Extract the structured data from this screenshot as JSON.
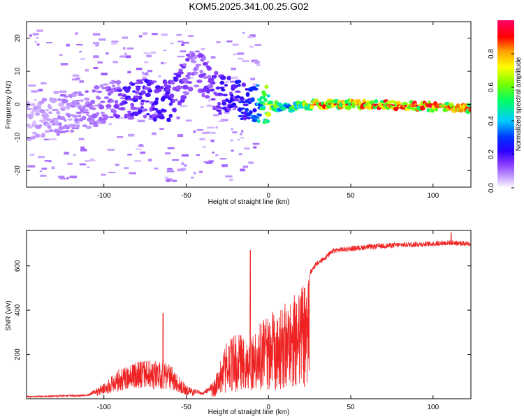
{
  "title": "KOM5.2025.341.00.25.G02",
  "chart_data": [
    {
      "type": "heatmap",
      "xlabel": "Height of straight line (km)",
      "ylabel": "Frequency (Hz)",
      "xlim": [
        -147,
        123
      ],
      "ylim": [
        -25,
        25
      ],
      "xticks": [
        -100,
        -50,
        0,
        50,
        100
      ],
      "yticks": [
        -20,
        -10,
        0,
        10,
        20
      ],
      "colorbar": {
        "label": "Normalized spectral amplitude",
        "range": [
          0,
          1
        ],
        "ticks": [
          "0.0",
          "0.2",
          "0.4",
          "0.6",
          "0.8"
        ],
        "colors": [
          "#ffffff",
          "#9a5cff",
          "#3300ff",
          "#0000ff",
          "#00ccff",
          "#00ff66",
          "#aaff00",
          "#ffff00",
          "#ff9900",
          "#ff0000",
          "#ff0055"
        ]
      },
      "ridge": {
        "description_points": [
          {
            "x": -140,
            "y": -5,
            "amp": 0.08
          },
          {
            "x": -100,
            "y": 0,
            "amp": 0.12
          },
          {
            "x": -85,
            "y": 2,
            "amp": 0.2
          },
          {
            "x": -60,
            "y": 1,
            "amp": 0.22
          },
          {
            "x": -45,
            "y": 12,
            "amp": 0.12
          },
          {
            "x": -30,
            "y": 3,
            "amp": 0.2
          },
          {
            "x": -10,
            "y": 0.5,
            "amp": 0.3
          },
          {
            "x": 0,
            "y": 0,
            "amp": 0.7
          },
          {
            "x": 10,
            "y": -1,
            "amp": 0.5
          },
          {
            "x": 30,
            "y": 0,
            "amp": 0.85
          },
          {
            "x": 60,
            "y": 0,
            "amp": 0.9
          },
          {
            "x": 90,
            "y": -0.5,
            "amp": 0.95
          },
          {
            "x": 120,
            "y": -1,
            "amp": 0.85
          }
        ]
      }
    },
    {
      "type": "line",
      "xlabel": "Height of straight line (km)",
      "ylabel": "SNR (v/v)",
      "xlim": [
        -147,
        123
      ],
      "ylim": [
        0,
        760
      ],
      "xticks": [
        -100,
        -50,
        0,
        50,
        100
      ],
      "yticks": [
        200,
        400,
        600
      ],
      "color": "#ee2222",
      "envelope": [
        {
          "x": -147,
          "y": 12
        },
        {
          "x": -110,
          "y": 20
        },
        {
          "x": -100,
          "y": 70
        },
        {
          "x": -90,
          "y": 140
        },
        {
          "x": -75,
          "y": 180
        },
        {
          "x": -60,
          "y": 160
        },
        {
          "x": -50,
          "y": 60
        },
        {
          "x": -40,
          "y": 30
        },
        {
          "x": -33,
          "y": 80
        },
        {
          "x": -25,
          "y": 270
        },
        {
          "x": -18,
          "y": 300
        },
        {
          "x": -12,
          "y": 250
        },
        {
          "x": -7,
          "y": 330
        },
        {
          "x": 0,
          "y": 380
        },
        {
          "x": 10,
          "y": 430
        },
        {
          "x": 20,
          "y": 500
        },
        {
          "x": 28,
          "y": 600
        },
        {
          "x": 40,
          "y": 670
        },
        {
          "x": 60,
          "y": 685
        },
        {
          "x": 80,
          "y": 695
        },
        {
          "x": 100,
          "y": 700
        },
        {
          "x": 110,
          "y": 705
        },
        {
          "x": 123,
          "y": 700
        }
      ]
    }
  ]
}
